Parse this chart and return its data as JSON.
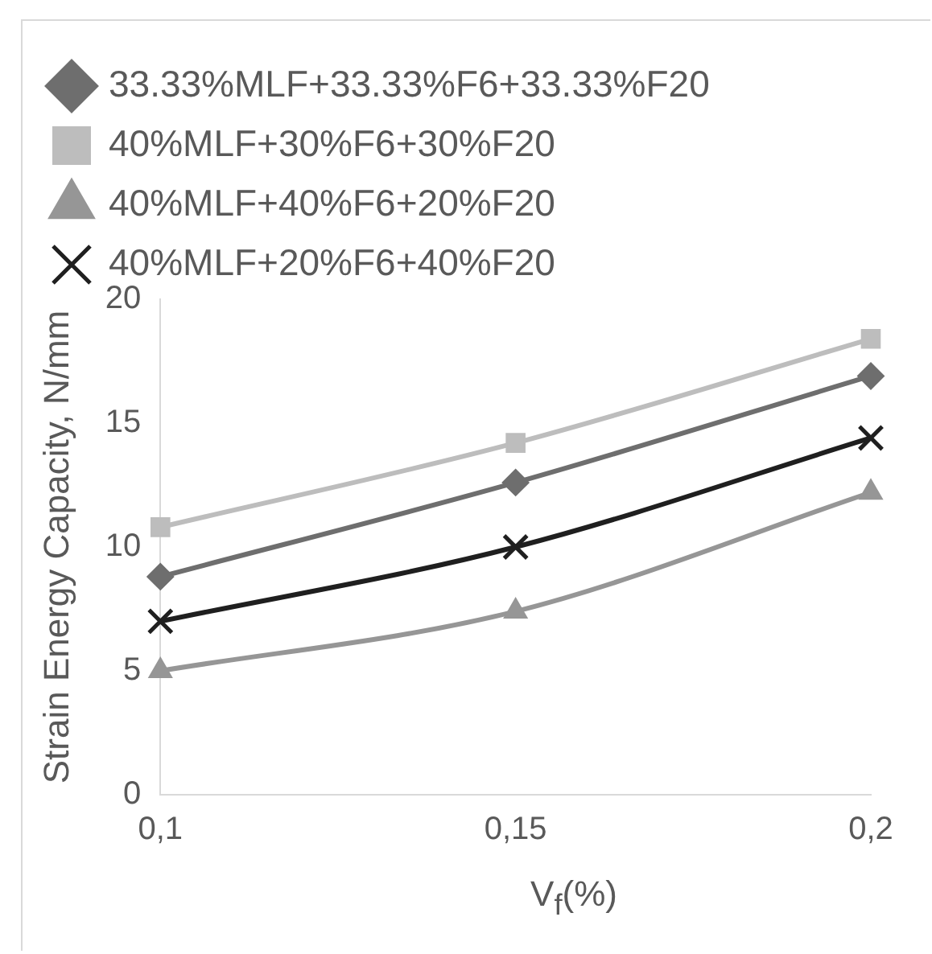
{
  "chart_data": {
    "type": "line",
    "ylabel": "Strain Energy Capacity, N/mm",
    "xlabel": "V$_{f}$(%)",
    "categories": [
      "0,1",
      "0,15",
      "0,2"
    ],
    "series": [
      {
        "name": "33.33%MLF+33.33%F6+33.33%F20",
        "color": "#6e6e6e",
        "marker": "diamond",
        "values": [
          8.8,
          12.6,
          16.9
        ]
      },
      {
        "name": "40%MLF+30%F6+30%F20",
        "color": "#bdbdbd",
        "marker": "square",
        "values": [
          10.8,
          14.2,
          18.4
        ]
      },
      {
        "name": "40%MLF+40%F6+20%F20",
        "color": "#969696",
        "marker": "triangle",
        "values": [
          5.0,
          7.4,
          12.2
        ]
      },
      {
        "name": "40%MLF+20%F6+40%F20",
        "color": "#1f1f1f",
        "marker": "cross",
        "values": [
          7.0,
          10.0,
          14.4
        ]
      }
    ],
    "ylim": [
      0,
      20
    ],
    "yticks": [
      0,
      5,
      10,
      15,
      20
    ],
    "grid": false,
    "legend": "top",
    "line_style": "solid"
  }
}
